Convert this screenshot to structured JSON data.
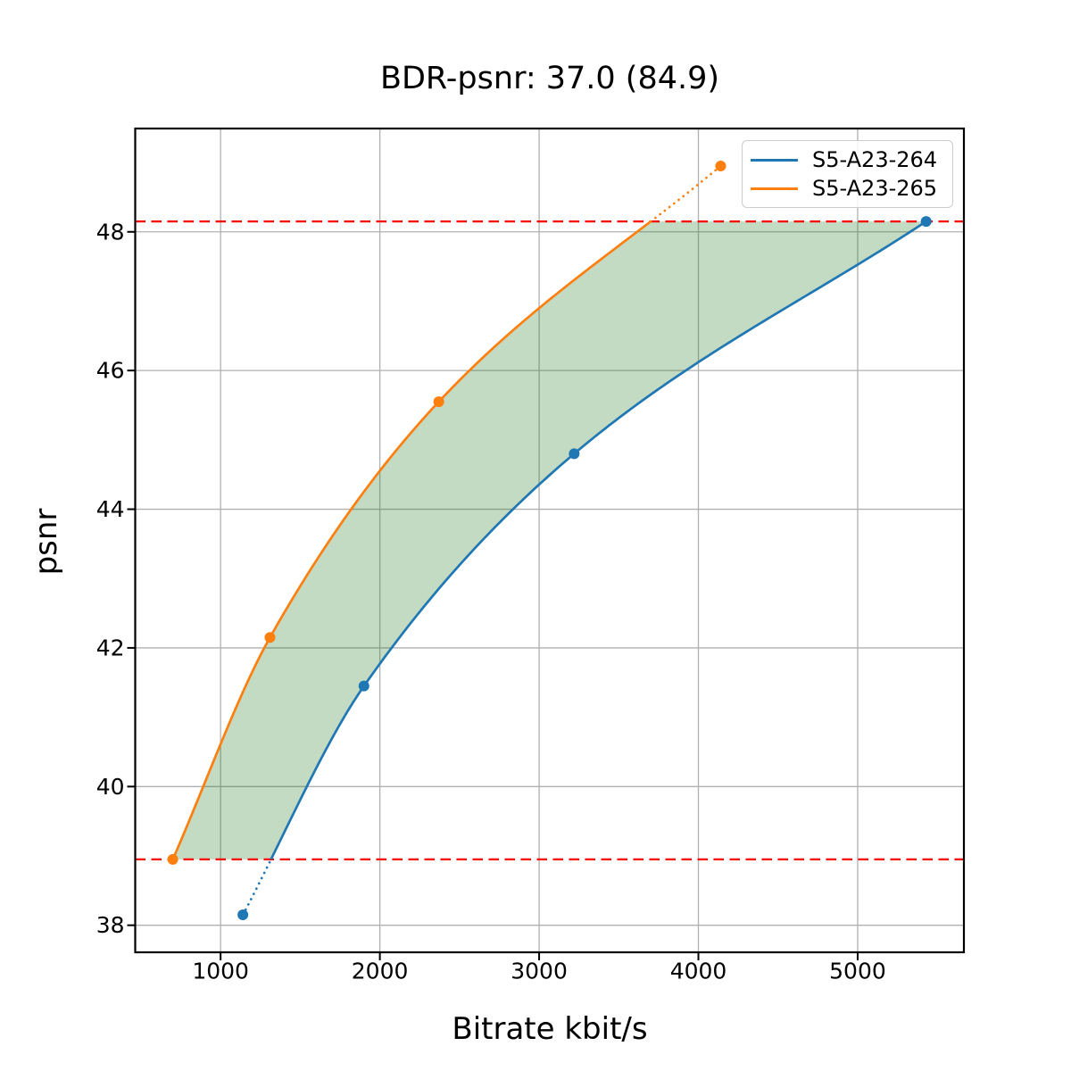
{
  "chart_data": {
    "type": "line",
    "title": "BDR-psnr: 37.0 (84.9)",
    "xlabel": "Bitrate kbit/s",
    "ylabel": "psnr",
    "xlim": [
      464,
      5667
    ],
    "ylim": [
      37.61,
      49.49
    ],
    "xticks": [
      1000,
      2000,
      3000,
      4000,
      5000
    ],
    "yticks": [
      38,
      40,
      42,
      44,
      46,
      48
    ],
    "grid": true,
    "grid_color": "#b0b0b0",
    "legend_position": "upper right",
    "series": [
      {
        "name": "S5-A23-264",
        "color": "#1f77b4",
        "points": [
          [
            1140,
            38.15
          ],
          [
            1900,
            41.45
          ],
          [
            3220,
            44.8
          ],
          [
            5430,
            48.15
          ]
        ],
        "dotted": "below_low"
      },
      {
        "name": "S5-A23-265",
        "color": "#ff7f0e",
        "points": [
          [
            700,
            38.95
          ],
          [
            1310,
            42.15
          ],
          [
            2370,
            45.55
          ],
          [
            4140,
            48.95
          ]
        ],
        "dotted": "above_high"
      }
    ],
    "hlines": {
      "low": 38.95,
      "high": 48.15,
      "color": "#ff0000",
      "style": "dashed"
    },
    "fill_between": {
      "color": "rgba(34,120,34,0.27)",
      "clip_low": 38.95,
      "clip_high": 48.15
    }
  }
}
